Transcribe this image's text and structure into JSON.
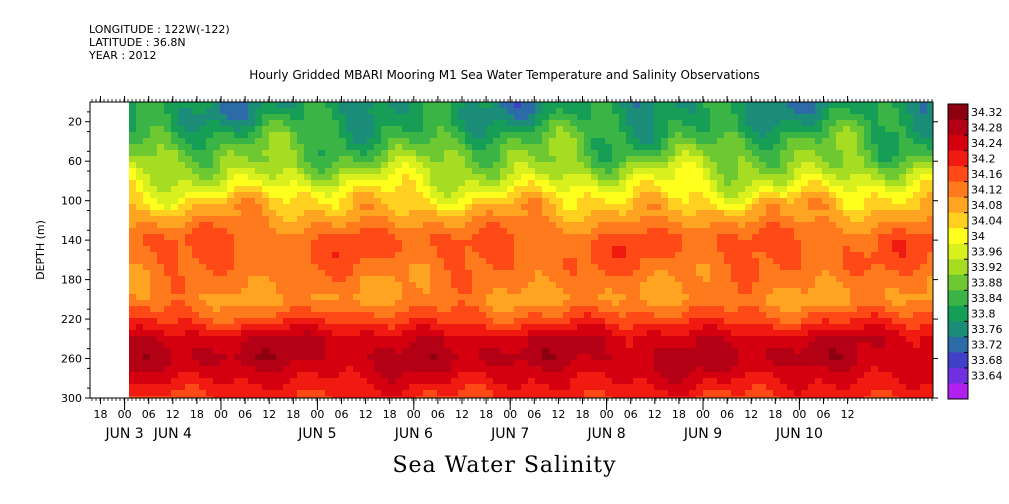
{
  "header": {
    "longitude": "LONGITUDE : 122W(-122)",
    "latitude": "LATITUDE : 36.8N",
    "year": "YEAR : 2012"
  },
  "chart_data": {
    "type": "heatmap",
    "title": "Hourly Gridded MBARI Mooring M1 Sea Water Temperature and Salinity Observations",
    "variable_title": "Sea Water Salinity",
    "ylabel": "DEPTH (m)",
    "y_reversed": true,
    "ylim": [
      300,
      0
    ],
    "y_ticks": [
      20,
      60,
      100,
      140,
      180,
      220,
      260,
      300
    ],
    "x_hour_ticks": [
      "18",
      "00",
      "06",
      "12",
      "18",
      "00",
      "06",
      "12",
      "18",
      "00",
      "06",
      "12",
      "18",
      "00",
      "06",
      "12",
      "18",
      "00",
      "06",
      "12",
      "18",
      "00",
      "06",
      "12",
      "18",
      "00",
      "06",
      "12",
      "18",
      "00",
      "06",
      "12"
    ],
    "x_date_labels": [
      {
        "label": "JUN  3",
        "at_tick": 1
      },
      {
        "label": "JUN  4",
        "at_tick": 3
      },
      {
        "label": "JUN  5",
        "at_tick": 9
      },
      {
        "label": "JUN  6",
        "at_tick": 13
      },
      {
        "label": "JUN  7",
        "at_tick": 17
      },
      {
        "label": "JUN  8",
        "at_tick": 21
      },
      {
        "label": "JUN  9",
        "at_tick": 25
      },
      {
        "label": "JUN 10",
        "at_tick": 29
      }
    ],
    "colorbar": {
      "labels": [
        "34.32",
        "34.28",
        "34.24",
        "34.2",
        "34.16",
        "34.12",
        "34.08",
        "34.04",
        "34",
        "33.96",
        "33.92",
        "33.88",
        "33.84",
        "33.8",
        "33.76",
        "33.72",
        "33.68",
        "33.64"
      ],
      "colors": [
        "#8c0010",
        "#b30014",
        "#d40010",
        "#f01a10",
        "#ff4a18",
        "#ff7a1c",
        "#ffa420",
        "#ffd020",
        "#ffff1e",
        "#d7f01e",
        "#a6dc22",
        "#6ec832",
        "#3ab444",
        "#169e56",
        "#1a8c78",
        "#2d6aa8",
        "#4040c8",
        "#7030e0",
        "#b020f0"
      ],
      "min": 33.64,
      "max": 34.32
    },
    "depth_profile": {
      "depths": [
        5,
        20,
        40,
        60,
        80,
        100,
        120,
        140,
        160,
        180,
        200,
        220,
        240,
        260,
        280,
        300
      ],
      "values": [
        33.82,
        33.84,
        33.88,
        33.92,
        33.98,
        34.05,
        34.1,
        34.15,
        34.14,
        34.12,
        34.1,
        34.16,
        34.24,
        34.26,
        34.22,
        34.18
      ]
    }
  }
}
